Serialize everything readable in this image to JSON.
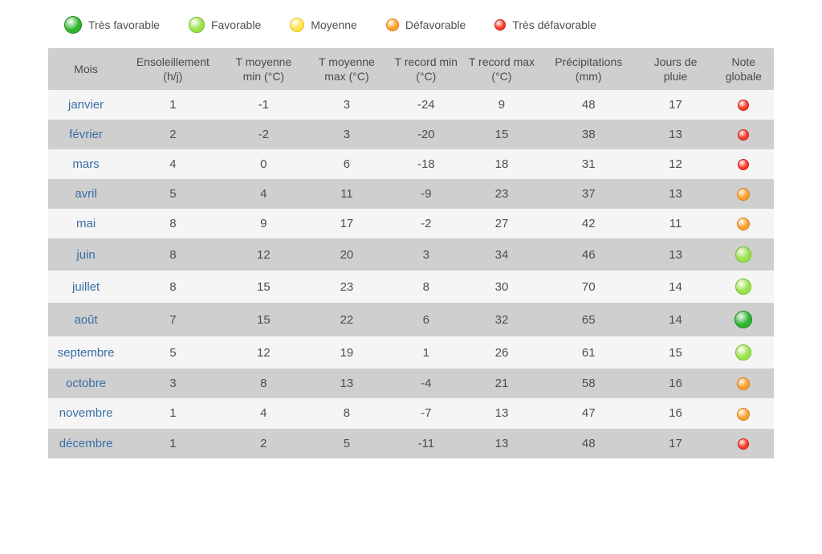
{
  "legend": [
    {
      "label": "Très favorable",
      "fill": "#2bb52b",
      "border": "#1e861e",
      "size": 22
    },
    {
      "label": "Favorable",
      "fill": "#9be24a",
      "border": "#6fbf2a",
      "size": 20
    },
    {
      "label": "Moyenne",
      "fill": "#ffe34a",
      "border": "#e0c42a",
      "size": 18
    },
    {
      "label": "Défavorable",
      "fill": "#ffa02a",
      "border": "#d97c15",
      "size": 16
    },
    {
      "label": "Très défavorable",
      "fill": "#ff3a2a",
      "border": "#c71e12",
      "size": 14
    }
  ],
  "noteStyles": {
    "tres_favorable": {
      "fill": "#2bb52b",
      "border": "#1e861e",
      "size": 22
    },
    "favorable": {
      "fill": "#9be24a",
      "border": "#6fbf2a",
      "size": 20
    },
    "moyenne": {
      "fill": "#ffe34a",
      "border": "#e0c42a",
      "size": 18
    },
    "defavorable": {
      "fill": "#ffa02a",
      "border": "#d97c15",
      "size": 16
    },
    "tres_defavorable": {
      "fill": "#ff3a2a",
      "border": "#c71e12",
      "size": 14
    }
  },
  "columns": [
    "Mois",
    "Ensoleillement (h/j)",
    "T moyenne min (°C)",
    "T moyenne max (°C)",
    "T record min (°C)",
    "T record max (°C)",
    "Précipitations (mm)",
    "Jours de pluie",
    "Note globale"
  ],
  "colWidths": [
    "10%",
    "13%",
    "11%",
    "11%",
    "10%",
    "10%",
    "13%",
    "10%",
    "8%"
  ],
  "rows": [
    {
      "mois": "janvier",
      "ens": 1,
      "tmin": -1,
      "tmax": 3,
      "rmin": -24,
      "rmax": 9,
      "prec": 48,
      "jpluie": 17,
      "note": "tres_defavorable"
    },
    {
      "mois": "février",
      "ens": 2,
      "tmin": -2,
      "tmax": 3,
      "rmin": -20,
      "rmax": 15,
      "prec": 38,
      "jpluie": 13,
      "note": "tres_defavorable"
    },
    {
      "mois": "mars",
      "ens": 4,
      "tmin": 0,
      "tmax": 6,
      "rmin": -18,
      "rmax": 18,
      "prec": 31,
      "jpluie": 12,
      "note": "tres_defavorable"
    },
    {
      "mois": "avril",
      "ens": 5,
      "tmin": 4,
      "tmax": 11,
      "rmin": -9,
      "rmax": 23,
      "prec": 37,
      "jpluie": 13,
      "note": "defavorable"
    },
    {
      "mois": "mai",
      "ens": 8,
      "tmin": 9,
      "tmax": 17,
      "rmin": -2,
      "rmax": 27,
      "prec": 42,
      "jpluie": 11,
      "note": "defavorable"
    },
    {
      "mois": "juin",
      "ens": 8,
      "tmin": 12,
      "tmax": 20,
      "rmin": 3,
      "rmax": 34,
      "prec": 46,
      "jpluie": 13,
      "note": "favorable"
    },
    {
      "mois": "juillet",
      "ens": 8,
      "tmin": 15,
      "tmax": 23,
      "rmin": 8,
      "rmax": 30,
      "prec": 70,
      "jpluie": 14,
      "note": "favorable"
    },
    {
      "mois": "août",
      "ens": 7,
      "tmin": 15,
      "tmax": 22,
      "rmin": 6,
      "rmax": 32,
      "prec": 65,
      "jpluie": 14,
      "note": "tres_favorable"
    },
    {
      "mois": "septembre",
      "ens": 5,
      "tmin": 12,
      "tmax": 19,
      "rmin": 1,
      "rmax": 26,
      "prec": 61,
      "jpluie": 15,
      "note": "favorable"
    },
    {
      "mois": "octobre",
      "ens": 3,
      "tmin": 8,
      "tmax": 13,
      "rmin": -4,
      "rmax": 21,
      "prec": 58,
      "jpluie": 16,
      "note": "defavorable"
    },
    {
      "mois": "novembre",
      "ens": 1,
      "tmin": 4,
      "tmax": 8,
      "rmin": -7,
      "rmax": 13,
      "prec": 47,
      "jpluie": 16,
      "note": "defavorable"
    },
    {
      "mois": "décembre",
      "ens": 1,
      "tmin": 2,
      "tmax": 5,
      "rmin": -11,
      "rmax": 13,
      "prec": 48,
      "jpluie": 17,
      "note": "tres_defavorable"
    }
  ],
  "style": {
    "header_bg": "#cfcfcf",
    "row_odd_bg": "#f5f5f5",
    "row_even_bg": "#cfcfcf",
    "month_color": "#3a6ea5",
    "text_color": "#4e4e4e"
  }
}
